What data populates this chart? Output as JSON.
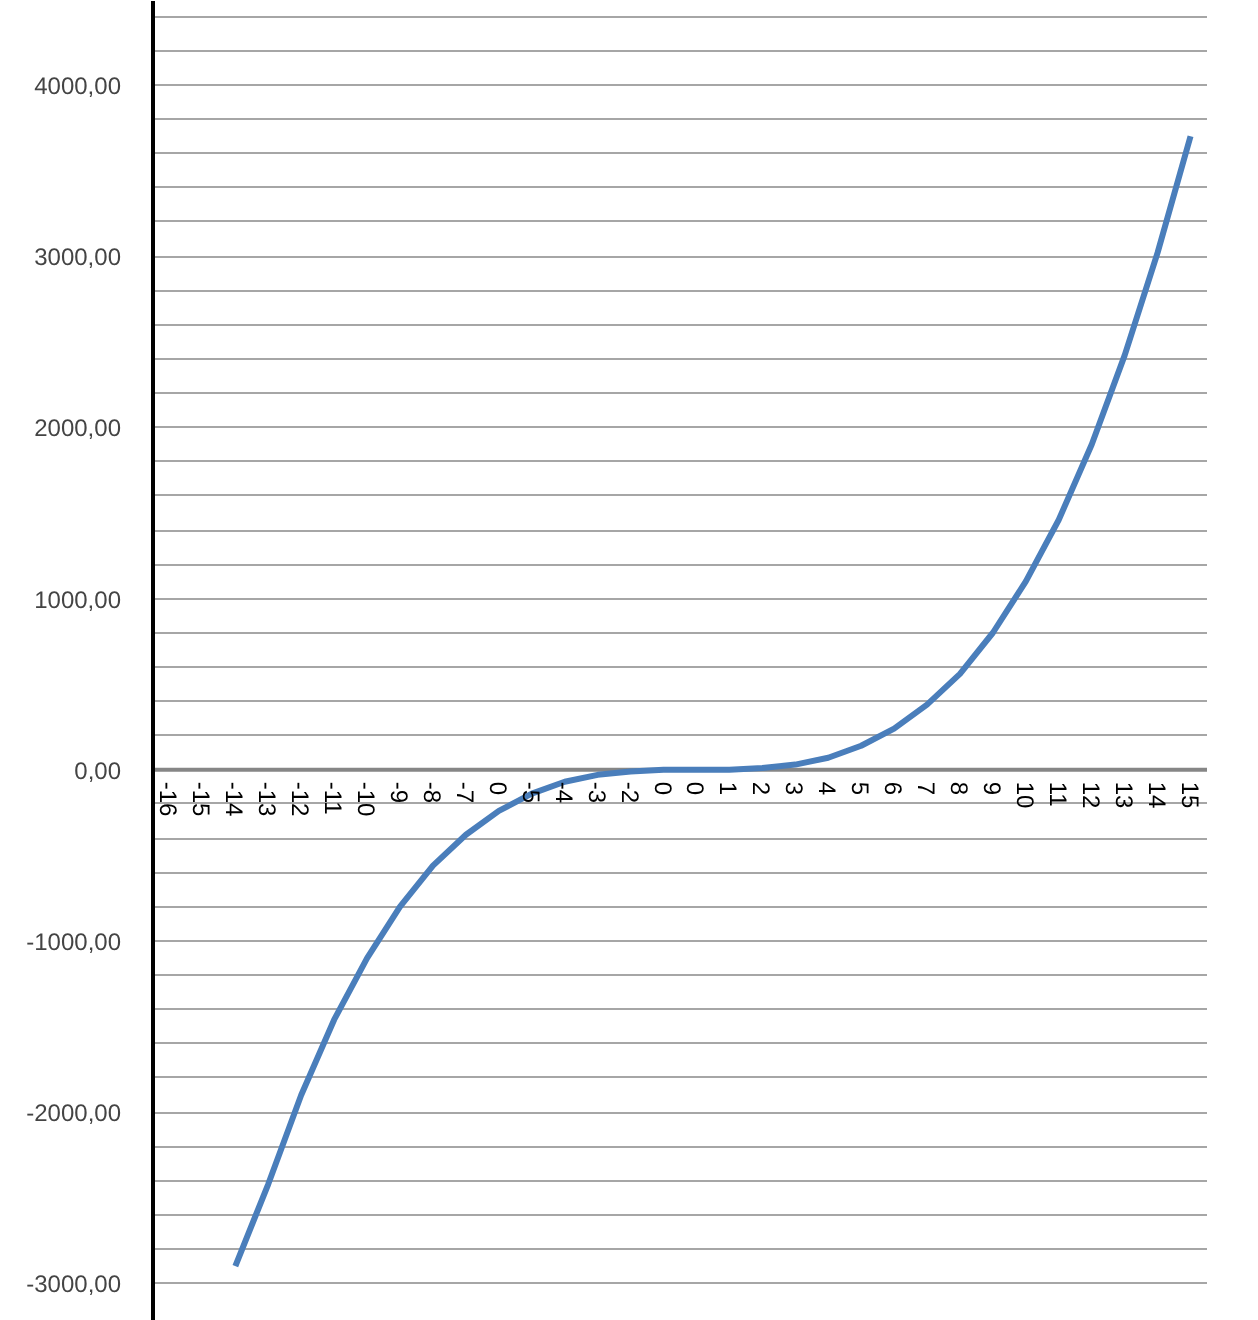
{
  "chart_data": {
    "type": "line",
    "categories": [
      "-16",
      "-15",
      "-14",
      "-13",
      "-12",
      "-11",
      "-10",
      "-9",
      "-8",
      "-7",
      "0",
      "-5",
      "-4",
      "-3",
      "-2",
      "0",
      "0",
      "1",
      "2",
      "3",
      "4",
      "5",
      "6",
      "7",
      "8",
      "9",
      "10",
      "11",
      "12",
      "13",
      "14",
      "15"
    ],
    "series": [
      {
        "color": "#4a7ebb",
        "values": [
          null,
          null,
          -2900,
          -2420,
          -1900,
          -1460,
          -1100,
          -800,
          -560,
          -380,
          -240,
          -140,
          -70,
          -30,
          -10,
          0,
          0,
          0,
          10,
          30,
          70,
          140,
          240,
          380,
          560,
          800,
          1100,
          1460,
          1900,
          2420,
          3020,
          3700
        ]
      }
    ],
    "ylim": [
      -3220,
      4490
    ],
    "yticks": [
      {
        "value": -3000,
        "label": "-3000,00"
      },
      {
        "value": -2800,
        "label": null
      },
      {
        "value": -2600,
        "label": null
      },
      {
        "value": -2400,
        "label": null
      },
      {
        "value": -2200,
        "label": null
      },
      {
        "value": -2000,
        "label": "-2000,00"
      },
      {
        "value": -1800,
        "label": null
      },
      {
        "value": -1600,
        "label": null
      },
      {
        "value": -1400,
        "label": null
      },
      {
        "value": -1200,
        "label": null
      },
      {
        "value": -1000,
        "label": "-1000,00"
      },
      {
        "value": -800,
        "label": null
      },
      {
        "value": -600,
        "label": null
      },
      {
        "value": -400,
        "label": null
      },
      {
        "value": -200,
        "label": null
      },
      {
        "value": 0,
        "label": "0,00"
      },
      {
        "value": 200,
        "label": null
      },
      {
        "value": 400,
        "label": null
      },
      {
        "value": 600,
        "label": null
      },
      {
        "value": 800,
        "label": null
      },
      {
        "value": 1000,
        "label": "1000,00"
      },
      {
        "value": 1200,
        "label": null
      },
      {
        "value": 1400,
        "label": null
      },
      {
        "value": 1600,
        "label": null
      },
      {
        "value": 1800,
        "label": null
      },
      {
        "value": 2000,
        "label": "2000,00"
      },
      {
        "value": 2200,
        "label": null
      },
      {
        "value": 2400,
        "label": null
      },
      {
        "value": 2600,
        "label": null
      },
      {
        "value": 2800,
        "label": null
      },
      {
        "value": 3000,
        "label": "3000,00"
      },
      {
        "value": 3200,
        "label": null
      },
      {
        "value": 3400,
        "label": null
      },
      {
        "value": 3600,
        "label": null
      },
      {
        "value": 3800,
        "label": null
      },
      {
        "value": 4000,
        "label": "4000,00"
      },
      {
        "value": 4200,
        "label": null
      },
      {
        "value": 4400,
        "label": null
      }
    ],
    "grid": "y",
    "marker": "none",
    "line_style": "solid"
  }
}
